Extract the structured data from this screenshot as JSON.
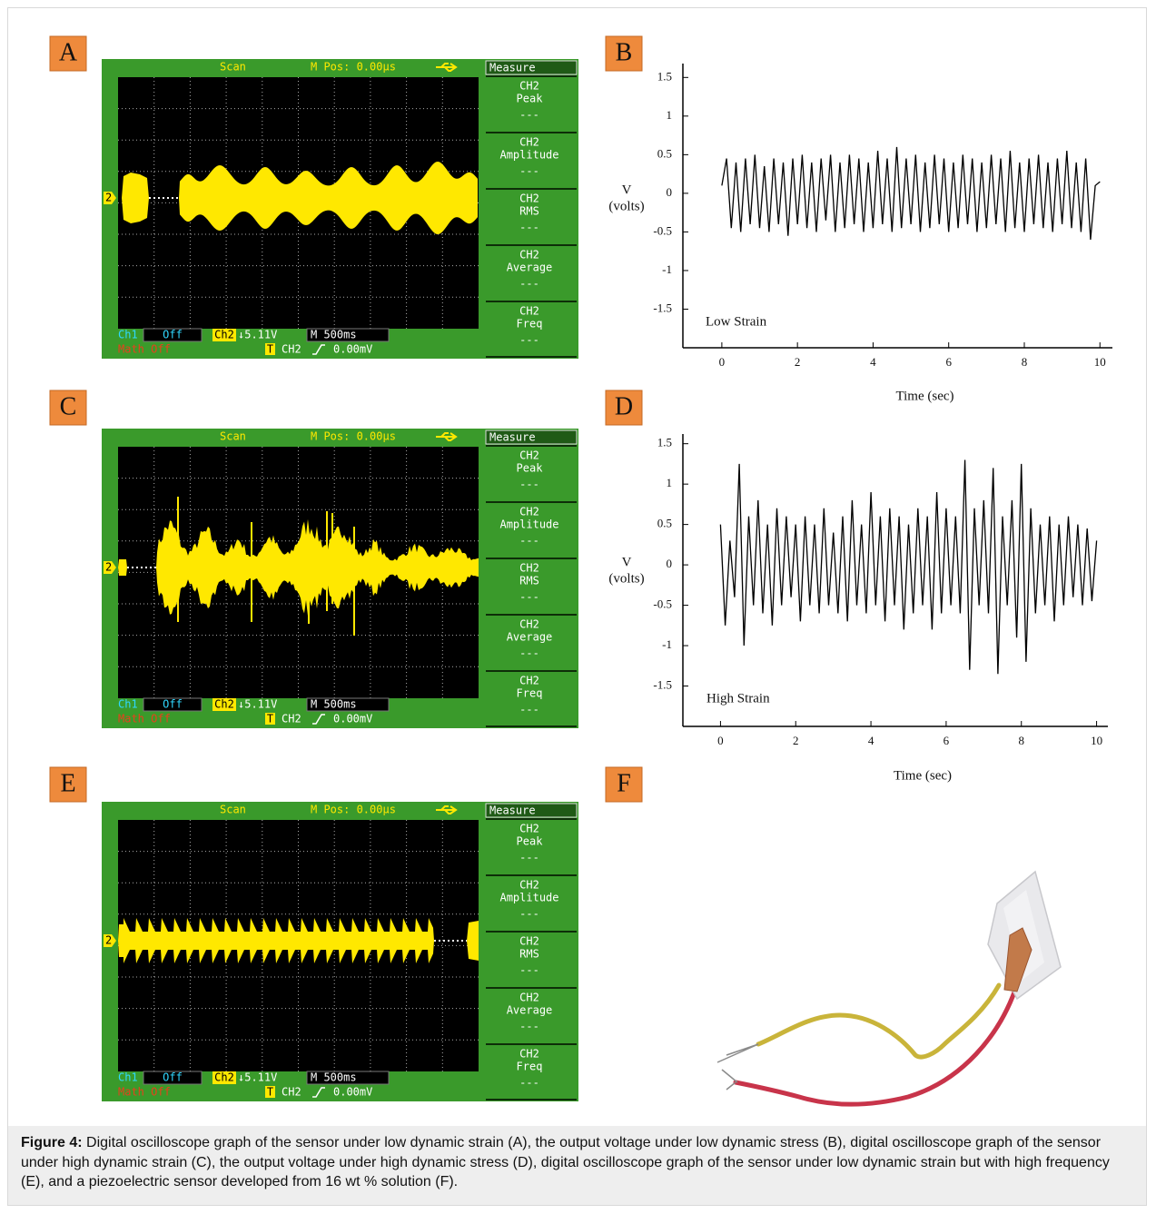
{
  "panel_labels": [
    "A",
    "B",
    "C",
    "D",
    "E",
    "F"
  ],
  "oscilloscopes": [
    {
      "mode": "Scan",
      "position": "M Pos: 0.00µs",
      "menu_title": "Measure",
      "measurements": [
        {
          "channel": "CH2",
          "name": "Peak",
          "value": "---"
        },
        {
          "channel": "CH2",
          "name": "Amplitude",
          "value": "---"
        },
        {
          "channel": "CH2",
          "name": "RMS",
          "value": "---"
        },
        {
          "channel": "CH2",
          "name": "Average",
          "value": "---"
        },
        {
          "channel": "CH2",
          "name": "Freq",
          "value": "---"
        }
      ],
      "channel_marker": "2",
      "ch1_label": "Ch1",
      "ch1_state": "Off",
      "ch2_label": "Ch2",
      "ch2_scale": "↓5.11V",
      "timebase": "M 500ms",
      "math": "Math Off",
      "trigger_mark": "T",
      "trigger_source": "CH2",
      "trigger_level": "0.00mV"
    },
    {
      "mode": "Scan",
      "position": "M Pos: 0.00µs",
      "menu_title": "Measure",
      "measurements": [
        {
          "channel": "CH2",
          "name": "Peak",
          "value": "---"
        },
        {
          "channel": "CH2",
          "name": "Amplitude",
          "value": "---"
        },
        {
          "channel": "CH2",
          "name": "RMS",
          "value": "---"
        },
        {
          "channel": "CH2",
          "name": "Average",
          "value": "---"
        },
        {
          "channel": "CH2",
          "name": "Freq",
          "value": "---"
        }
      ],
      "channel_marker": "2",
      "ch1_label": "Ch1",
      "ch1_state": "Off",
      "ch2_label": "Ch2",
      "ch2_scale": "↓5.11V",
      "timebase": "M 500ms",
      "math": "Math Off",
      "trigger_mark": "T",
      "trigger_source": "CH2",
      "trigger_level": "0.00mV"
    },
    {
      "mode": "Scan",
      "position": "M Pos: 0.00µs",
      "menu_title": "Measure",
      "measurements": [
        {
          "channel": "CH2",
          "name": "Peak",
          "value": "---"
        },
        {
          "channel": "CH2",
          "name": "Amplitude",
          "value": "---"
        },
        {
          "channel": "CH2",
          "name": "RMS",
          "value": "---"
        },
        {
          "channel": "CH2",
          "name": "Average",
          "value": "---"
        },
        {
          "channel": "CH2",
          "name": "Freq",
          "value": "---"
        }
      ],
      "channel_marker": "2",
      "ch1_label": "Ch1",
      "ch1_state": "Off",
      "ch2_label": "Ch2",
      "ch2_scale": "↓5.11V",
      "timebase": "M 500ms",
      "math": "Math Off",
      "trigger_mark": "T",
      "trigger_source": "CH2",
      "trigger_level": "0.00mV"
    }
  ],
  "chart_data": [
    {
      "type": "line",
      "annotation": "Low Strain",
      "xlabel": "Time (sec)",
      "ylabel": [
        "V",
        "(volts)"
      ],
      "color": "#000000",
      "x": [
        0,
        0.125,
        0.25,
        0.375,
        0.5,
        0.625,
        0.75,
        0.875,
        1,
        1.125,
        1.25,
        1.375,
        1.5,
        1.625,
        1.75,
        1.875,
        2,
        2.125,
        2.25,
        2.375,
        2.5,
        2.625,
        2.75,
        2.875,
        3,
        3.125,
        3.25,
        3.375,
        3.5,
        3.625,
        3.75,
        3.875,
        4,
        4.125,
        4.25,
        4.375,
        4.5,
        4.625,
        4.75,
        4.875,
        5,
        5.125,
        5.25,
        5.375,
        5.5,
        5.625,
        5.75,
        5.875,
        6,
        6.125,
        6.25,
        6.375,
        6.5,
        6.625,
        6.75,
        6.875,
        7,
        7.125,
        7.25,
        7.375,
        7.5,
        7.625,
        7.75,
        7.875,
        8,
        8.125,
        8.25,
        8.375,
        8.5,
        8.625,
        8.75,
        8.875,
        9,
        9.125,
        9.25,
        9.375,
        9.5,
        9.625,
        9.75,
        9.875,
        10
      ],
      "values": [
        0.1,
        0.45,
        -0.45,
        0.4,
        -0.5,
        0.45,
        -0.4,
        0.5,
        -0.45,
        0.35,
        -0.5,
        0.45,
        -0.4,
        0.4,
        -0.55,
        0.45,
        -0.4,
        0.5,
        -0.45,
        0.4,
        -0.5,
        0.45,
        -0.35,
        0.5,
        -0.5,
        0.4,
        -0.45,
        0.5,
        -0.4,
        0.45,
        -0.5,
        0.4,
        -0.45,
        0.55,
        -0.4,
        0.45,
        -0.5,
        0.6,
        -0.45,
        0.45,
        -0.4,
        0.5,
        -0.5,
        0.4,
        -0.45,
        0.5,
        -0.4,
        0.45,
        -0.5,
        0.4,
        -0.45,
        0.5,
        -0.4,
        0.45,
        -0.5,
        0.4,
        -0.45,
        0.5,
        -0.4,
        0.45,
        -0.5,
        0.55,
        -0.45,
        0.4,
        -0.5,
        0.45,
        -0.4,
        0.5,
        -0.45,
        0.4,
        -0.5,
        0.45,
        -0.4,
        0.55,
        -0.45,
        0.4,
        -0.5,
        0.45,
        -0.6,
        0.1,
        0.15
      ],
      "xlim": [
        -1.03,
        10.33
      ],
      "ylim": [
        -2,
        1.68
      ],
      "xticks": [
        0,
        2,
        4,
        6,
        8,
        10
      ],
      "yticks": [
        -1.5,
        -1,
        -0.5,
        0,
        0.5,
        1,
        1.5
      ]
    },
    {
      "type": "line",
      "annotation": "High Strain",
      "xlabel": "Time (sec)",
      "ylabel": [
        "V",
        "(volts)"
      ],
      "color": "#000000",
      "x": [
        0,
        0.125,
        0.25,
        0.375,
        0.5,
        0.625,
        0.75,
        0.875,
        1,
        1.125,
        1.25,
        1.375,
        1.5,
        1.625,
        1.75,
        1.875,
        2,
        2.125,
        2.25,
        2.375,
        2.5,
        2.625,
        2.75,
        2.875,
        3,
        3.125,
        3.25,
        3.375,
        3.5,
        3.625,
        3.75,
        3.875,
        4,
        4.125,
        4.25,
        4.375,
        4.5,
        4.625,
        4.75,
        4.875,
        5,
        5.125,
        5.25,
        5.375,
        5.5,
        5.625,
        5.75,
        5.875,
        6,
        6.125,
        6.25,
        6.375,
        6.5,
        6.625,
        6.75,
        6.875,
        7,
        7.125,
        7.25,
        7.375,
        7.5,
        7.625,
        7.75,
        7.875,
        8,
        8.125,
        8.25,
        8.375,
        8.5,
        8.625,
        8.75,
        8.875,
        9,
        9.125,
        9.25,
        9.375,
        9.5,
        9.625,
        9.75,
        9.875,
        10
      ],
      "values": [
        0.5,
        -0.75,
        0.3,
        -0.4,
        1.25,
        -1.0,
        0.6,
        -0.5,
        0.8,
        -0.6,
        0.5,
        -0.75,
        0.7,
        -0.5,
        0.6,
        -0.4,
        0.5,
        -0.7,
        0.6,
        -0.5,
        0.5,
        -0.6,
        0.7,
        -0.5,
        0.4,
        -0.6,
        0.6,
        -0.7,
        0.8,
        -0.5,
        0.5,
        -0.6,
        0.9,
        -0.5,
        0.6,
        -0.7,
        0.7,
        -0.5,
        0.6,
        -0.8,
        0.5,
        -0.6,
        0.7,
        -0.5,
        0.6,
        -0.8,
        0.9,
        -0.6,
        0.7,
        -0.5,
        0.6,
        -0.6,
        1.3,
        -1.3,
        0.7,
        -0.5,
        0.8,
        -0.6,
        1.2,
        -1.35,
        0.6,
        -0.5,
        0.8,
        -0.9,
        1.25,
        -1.2,
        0.7,
        -0.6,
        0.5,
        -0.5,
        0.6,
        -0.7,
        0.5,
        -0.5,
        0.6,
        -0.4,
        0.5,
        -0.5,
        0.45,
        -0.45,
        0.3
      ],
      "xlim": [
        -1,
        10.3
      ],
      "ylim": [
        -2,
        1.62
      ],
      "xticks": [
        0,
        2,
        4,
        6,
        8,
        10
      ],
      "yticks": [
        -1.5,
        -1,
        -0.5,
        0,
        0.5,
        1,
        1.5
      ]
    }
  ],
  "caption": {
    "label": "Figure 4:",
    "text": "Digital oscilloscope graph of the sensor under low dynamic strain (A), the output voltage under low dynamic stress (B), digital oscilloscope graph of the sensor under high dynamic strain (C), the output voltage under high dynamic stress (D), digital oscilloscope graph of the sensor under low dynamic strain but with high frequency (E), and a piezoelectric sensor developed from 16 wt % solution (F)."
  }
}
